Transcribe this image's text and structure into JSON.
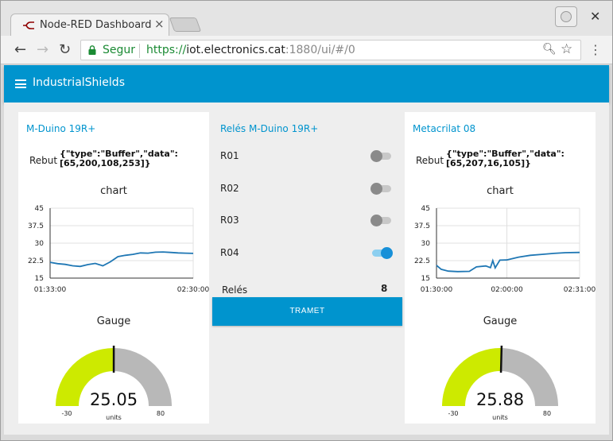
{
  "browser": {
    "tab_title": "Node-RED Dashboard",
    "secure_label": "Segur",
    "url_scheme": "https://",
    "url_host": "iot.electronics.cat",
    "url_rest": ":1880/ui/#/0",
    "icons": [
      "back-icon",
      "forward-icon",
      "reload-icon",
      "lock-icon",
      "zoom-icon",
      "star-icon",
      "menu-icon",
      "profile-icon",
      "close-icon"
    ]
  },
  "app": {
    "title": "IndustrialShields",
    "accent": "#0094ce"
  },
  "cards": {
    "left": {
      "title": "M-Duino 19R+",
      "rebut_label": "Rebut",
      "rebut_value": "{\"type\":\"Buffer\",\"data\":[65,200,108,253]}",
      "chart_title": "chart",
      "gauge_title": "Gauge",
      "gauge_value": "25.05",
      "gauge_units": "units",
      "gauge_min": "-30",
      "gauge_max": "80"
    },
    "middle": {
      "title": "Relés M-Duino 19R+",
      "relays": [
        {
          "label": "R01",
          "on": false
        },
        {
          "label": "R02",
          "on": false
        },
        {
          "label": "R03",
          "on": false
        },
        {
          "label": "R04",
          "on": true
        }
      ],
      "rels_label": "Relés",
      "rels_value": "8",
      "button_label": "TRAMET"
    },
    "right": {
      "title": "Metacrilat 08",
      "rebut_label": "Rebut",
      "rebut_value": "{\"type\":\"Buffer\",\"data\":[65,207,16,105]}",
      "chart_title": "chart",
      "gauge_title": "Gauge",
      "gauge_value": "25.88",
      "gauge_units": "units",
      "gauge_min": "-30",
      "gauge_max": "80"
    }
  },
  "chart_data": [
    {
      "type": "line",
      "title": "chart",
      "ylim": [
        15,
        45
      ],
      "yticks": [
        "45",
        "37.5",
        "30",
        "22.5",
        "15"
      ],
      "xticks": [
        "01:33:00",
        "02:30:00"
      ],
      "grid": true,
      "color": "#1f77b4",
      "x": [
        "01:33:00",
        "01:36:00",
        "01:39:00",
        "01:42:00",
        "01:45:00",
        "01:48:00",
        "01:51:00",
        "01:54:00",
        "01:57:00",
        "02:00:00",
        "02:03:00",
        "02:06:00",
        "02:09:00",
        "02:12:00",
        "02:15:00",
        "02:18:00",
        "02:21:00",
        "02:24:00",
        "02:27:00",
        "02:30:00"
      ],
      "values": [
        21.8,
        21.2,
        20.9,
        20.3,
        20.0,
        20.8,
        21.3,
        20.3,
        22.0,
        24.2,
        24.8,
        25.2,
        25.8,
        25.7,
        26.1,
        26.2,
        26.0,
        25.8,
        25.7,
        25.6
      ]
    },
    {
      "type": "line",
      "title": "chart",
      "ylim": [
        15,
        45
      ],
      "yticks": [
        "45",
        "37.5",
        "30",
        "22.5",
        "15"
      ],
      "xticks": [
        "01:30:00",
        "02:00:00",
        "02:31:00"
      ],
      "grid": true,
      "color": "#1f77b4",
      "x": [
        "01:30:00",
        "01:32:00",
        "01:35:00",
        "01:39:00",
        "01:44:00",
        "01:47:00",
        "01:51:00",
        "01:53:00",
        "01:54:00",
        "01:55:00",
        "01:57:00",
        "02:00:00",
        "02:05:00",
        "02:10:00",
        "02:15:00",
        "02:20:00",
        "02:25:00",
        "02:31:00"
      ],
      "values": [
        20.5,
        18.8,
        18.0,
        17.8,
        17.9,
        19.8,
        20.2,
        19.5,
        22.5,
        19.4,
        22.7,
        22.8,
        24.0,
        24.8,
        25.2,
        25.6,
        25.9,
        26.0
      ]
    }
  ],
  "gauge_colors": {
    "fill": "#cdea00",
    "background": "#b8b8b8",
    "needle": "#111111"
  }
}
